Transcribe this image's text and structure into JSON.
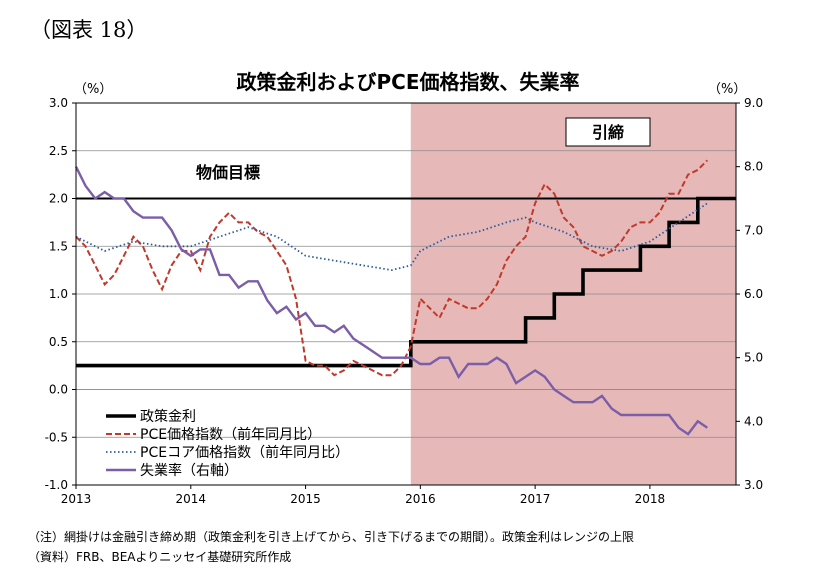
{
  "figure_label": "（図表 18）",
  "chart_data": {
    "type": "line",
    "title": "政策金利およびPCE価格指数、失業率",
    "y_left_unit": "（%）",
    "y_right_unit": "（%）",
    "y_left_range": [
      -1.0,
      3.0
    ],
    "y_left_ticks": [
      "3.0",
      "2.5",
      "2.0",
      "1.5",
      "1.0",
      "0.5",
      "0.0",
      "-0.5",
      "-1.0"
    ],
    "y_right_range": [
      3.0,
      9.0
    ],
    "y_right_ticks": [
      "9.0",
      "8.0",
      "7.0",
      "6.0",
      "5.0",
      "4.0",
      "3.0"
    ],
    "x_range": [
      2013.0,
      2018.75
    ],
    "x_ticks": [
      "2013",
      "2014",
      "2015",
      "2016",
      "2017",
      "2018"
    ],
    "grid": "horizontal",
    "legend_position": "bottom-left",
    "shaded_region": {
      "label": "引締",
      "x_start": 2015.917,
      "x_end": 2018.75,
      "color": "#e6b9b8"
    },
    "reference_line": {
      "label": "物価目標",
      "y": 2.0
    },
    "series": [
      {
        "name": "政策金利",
        "axis": "left",
        "color": "#000000",
        "style": "step",
        "x": [
          2013.0,
          2015.917,
          2016.917,
          2017.167,
          2017.417,
          2017.917,
          2018.167,
          2018.417,
          2018.75
        ],
        "y": [
          0.25,
          0.5,
          0.75,
          1.0,
          1.25,
          1.5,
          1.75,
          2.0,
          2.0
        ]
      },
      {
        "name": "PCE価格指数（前年同月比）",
        "axis": "left",
        "color": "#c0392b",
        "style": "dashed",
        "x": [
          2013.0,
          2013.083,
          2013.167,
          2013.25,
          2013.333,
          2013.417,
          2013.5,
          2013.583,
          2013.667,
          2013.75,
          2013.833,
          2013.917,
          2014.0,
          2014.083,
          2014.167,
          2014.25,
          2014.333,
          2014.417,
          2014.5,
          2014.583,
          2014.667,
          2014.75,
          2014.833,
          2014.917,
          2015.0,
          2015.083,
          2015.167,
          2015.25,
          2015.333,
          2015.417,
          2015.5,
          2015.583,
          2015.667,
          2015.75,
          2015.833,
          2015.917,
          2016.0,
          2016.083,
          2016.167,
          2016.25,
          2016.333,
          2016.417,
          2016.5,
          2016.583,
          2016.667,
          2016.75,
          2016.833,
          2016.917,
          2017.0,
          2017.083,
          2017.167,
          2017.25,
          2017.333,
          2017.417,
          2017.5,
          2017.583,
          2017.667,
          2017.75,
          2017.833,
          2017.917,
          2018.0,
          2018.083,
          2018.167,
          2018.25,
          2018.333,
          2018.417,
          2018.5
        ],
        "y": [
          1.6,
          1.5,
          1.3,
          1.1,
          1.2,
          1.4,
          1.6,
          1.5,
          1.25,
          1.05,
          1.3,
          1.45,
          1.45,
          1.25,
          1.6,
          1.75,
          1.85,
          1.75,
          1.75,
          1.65,
          1.6,
          1.45,
          1.3,
          0.95,
          0.3,
          0.25,
          0.25,
          0.15,
          0.2,
          0.3,
          0.25,
          0.2,
          0.15,
          0.15,
          0.25,
          0.45,
          0.95,
          0.85,
          0.75,
          0.95,
          0.9,
          0.85,
          0.85,
          0.95,
          1.1,
          1.35,
          1.5,
          1.6,
          1.95,
          2.15,
          2.05,
          1.8,
          1.7,
          1.5,
          1.45,
          1.4,
          1.45,
          1.55,
          1.7,
          1.75,
          1.75,
          1.85,
          2.05,
          2.05,
          2.25,
          2.3,
          2.4
        ]
      },
      {
        "name": "PCEコア価格指数（前年同月比）",
        "axis": "left",
        "color": "#2c5aa0",
        "style": "dotted",
        "x": [
          2013.0,
          2013.25,
          2013.5,
          2013.75,
          2014.0,
          2014.25,
          2014.5,
          2014.75,
          2015.0,
          2015.25,
          2015.5,
          2015.75,
          2015.917,
          2016.0,
          2016.25,
          2016.5,
          2016.75,
          2016.917,
          2017.0,
          2017.25,
          2017.5,
          2017.75,
          2018.0,
          2018.25,
          2018.5
        ],
        "y": [
          1.6,
          1.45,
          1.55,
          1.5,
          1.5,
          1.6,
          1.7,
          1.6,
          1.4,
          1.35,
          1.3,
          1.25,
          1.3,
          1.45,
          1.6,
          1.65,
          1.75,
          1.8,
          1.75,
          1.65,
          1.5,
          1.45,
          1.55,
          1.75,
          1.95
        ]
      },
      {
        "name": "失業率（右軸）",
        "axis": "right",
        "color": "#7b5ea7",
        "style": "solid",
        "x": [
          2013.0,
          2013.083,
          2013.167,
          2013.25,
          2013.333,
          2013.417,
          2013.5,
          2013.583,
          2013.667,
          2013.75,
          2013.833,
          2013.917,
          2014.0,
          2014.083,
          2014.167,
          2014.25,
          2014.333,
          2014.417,
          2014.5,
          2014.583,
          2014.667,
          2014.75,
          2014.833,
          2014.917,
          2015.0,
          2015.083,
          2015.167,
          2015.25,
          2015.333,
          2015.417,
          2015.5,
          2015.583,
          2015.667,
          2015.75,
          2015.833,
          2015.917,
          2016.0,
          2016.083,
          2016.167,
          2016.25,
          2016.333,
          2016.417,
          2016.5,
          2016.583,
          2016.667,
          2016.75,
          2016.833,
          2016.917,
          2017.0,
          2017.083,
          2017.167,
          2017.25,
          2017.333,
          2017.417,
          2017.5,
          2017.583,
          2017.667,
          2017.75,
          2017.833,
          2017.917,
          2018.0,
          2018.083,
          2018.167,
          2018.25,
          2018.333,
          2018.417,
          2018.5
        ],
        "y": [
          8.0,
          7.7,
          7.5,
          7.6,
          7.5,
          7.5,
          7.3,
          7.2,
          7.2,
          7.2,
          7.0,
          6.7,
          6.6,
          6.7,
          6.7,
          6.3,
          6.3,
          6.1,
          6.2,
          6.2,
          5.9,
          5.7,
          5.8,
          5.6,
          5.7,
          5.5,
          5.5,
          5.4,
          5.5,
          5.3,
          5.2,
          5.1,
          5.0,
          5.0,
          5.0,
          5.0,
          4.9,
          4.9,
          5.0,
          5.0,
          4.7,
          4.9,
          4.9,
          4.9,
          5.0,
          4.9,
          4.6,
          4.7,
          4.8,
          4.7,
          4.5,
          4.4,
          4.3,
          4.3,
          4.3,
          4.4,
          4.2,
          4.1,
          4.1,
          4.1,
          4.1,
          4.1,
          4.1,
          3.9,
          3.8,
          4.0,
          3.9
        ]
      }
    ]
  },
  "notes": {
    "note1": "（注）網掛けは金融引き締め期（政策金利を引き上げてから、引き下げるまでの期間）。政策金利はレンジの上限",
    "note2": "（資料）FRB、BEAよりニッセイ基礎研究所作成"
  }
}
